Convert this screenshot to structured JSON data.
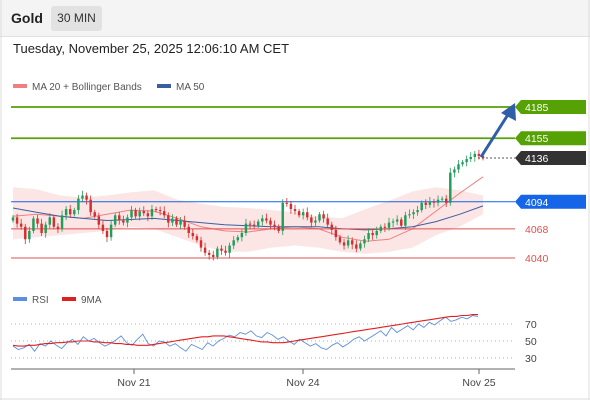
{
  "header": {
    "title": "Gold",
    "timeframe": "30 MIN",
    "datetime": "Tuesday, November 25, 2025 12:06:10 AM CET"
  },
  "colors": {
    "resistance": "#56a104",
    "price_tag": "#333333",
    "pivot": "#1565e8",
    "support": "#e05050",
    "candle_up": "#1f9e5a",
    "candle_down": "#d32f2f",
    "bollinger_fill": "#fbdcdc",
    "ma20": "#f08080",
    "ma50": "#3a5fa0",
    "rsi": "#5b8fe0",
    "rsi_ma": "#e02020",
    "arrow": "#2f5fa8"
  },
  "chart_data": [
    {
      "type": "candlestick",
      "legend": [
        {
          "name": "MA 20 + Bollinger Bands",
          "color": "#f08080"
        },
        {
          "name": "MA 50",
          "color": "#3a5fa0"
        }
      ],
      "x_ticks": [
        "Nov 21",
        "Nov 24",
        "Nov 25"
      ],
      "ylim": [
        4020,
        4200
      ],
      "levels": [
        {
          "value": 4185,
          "label": "4185",
          "kind": "resistance",
          "style": "tag"
        },
        {
          "value": 4155,
          "label": "4155",
          "kind": "resistance",
          "style": "tag"
        },
        {
          "value": 4136,
          "label": "4136",
          "kind": "price",
          "style": "tag"
        },
        {
          "value": 4094,
          "label": "4094",
          "kind": "pivot",
          "style": "tag"
        },
        {
          "value": 4068,
          "label": "4068",
          "kind": "support",
          "style": "text"
        },
        {
          "value": 4040,
          "label": "4040",
          "kind": "support",
          "style": "text"
        }
      ],
      "close": [
        4079,
        4073,
        4070,
        4058,
        4066,
        4078,
        4073,
        4064,
        4072,
        4079,
        4070,
        4068,
        4081,
        4087,
        4082,
        4086,
        4097,
        4100,
        4096,
        4084,
        4080,
        4072,
        4066,
        4060,
        4072,
        4081,
        4076,
        4074,
        4079,
        4086,
        4080,
        4085,
        4083,
        4080,
        4087,
        4086,
        4085,
        4081,
        4074,
        4078,
        4072,
        4076,
        4070,
        4064,
        4061,
        4057,
        4050,
        4045,
        4043,
        4041,
        4049,
        4047,
        4045,
        4052,
        4057,
        4060,
        4064,
        4073,
        4072,
        4071,
        4075,
        4078,
        4076,
        4072,
        4070,
        4066,
        4093,
        4092,
        4087,
        4085,
        4081,
        4084,
        4079,
        4074,
        4076,
        4082,
        4078,
        4072,
        4067,
        4060,
        4055,
        4052,
        4057,
        4053,
        4049,
        4054,
        4058,
        4064,
        4062,
        4066,
        4070,
        4069,
        4074,
        4075,
        4077,
        4071,
        4081,
        4082,
        4084,
        4086,
        4093,
        4091,
        4094,
        4093,
        4096,
        4097,
        4093,
        4122,
        4125,
        4130,
        4132,
        4135,
        4137,
        4140,
        4138,
        4136
      ],
      "bollinger_upper_points": [
        4108,
        4106,
        4100,
        4098,
        4100,
        4103,
        4105,
        4096,
        4092,
        4089,
        4088,
        4086,
        4084,
        4080,
        4078,
        4087,
        4095,
        4104,
        4108,
        4105,
        4100
      ],
      "bollinger_lower_points": [
        4058,
        4060,
        4062,
        4064,
        4066,
        4070,
        4068,
        4060,
        4052,
        4046,
        4046,
        4050,
        4052,
        4050,
        4046,
        4044,
        4046,
        4050,
        4062,
        4070,
        4082
      ],
      "ma20_points": [
        4080,
        4082,
        4080,
        4078,
        4082,
        4086,
        4085,
        4078,
        4070,
        4066,
        4065,
        4068,
        4070,
        4068,
        4060,
        4056,
        4058,
        4068,
        4085,
        4102,
        4118
      ],
      "ma50_points": [
        4088,
        4084,
        4080,
        4078,
        4076,
        4077,
        4078,
        4076,
        4074,
        4072,
        4071,
        4070,
        4070,
        4070,
        4068,
        4067,
        4068,
        4070,
        4075,
        4082,
        4090
      ]
    },
    {
      "type": "line",
      "legend": [
        {
          "name": "RSI",
          "color": "#5b8fe0"
        },
        {
          "name": "9MA",
          "color": "#e02020"
        }
      ],
      "y_ticks": [
        70,
        50,
        30
      ],
      "ylim": [
        20,
        85
      ],
      "series": [
        {
          "name": "RSI",
          "values": [
            44,
            40,
            42,
            46,
            38,
            47,
            44,
            50,
            45,
            41,
            48,
            52,
            46,
            55,
            50,
            53,
            48,
            44,
            47,
            51,
            56,
            48,
            45,
            52,
            58,
            47,
            44,
            50,
            49,
            44,
            47,
            42,
            38,
            46,
            43,
            40,
            48,
            44,
            50,
            53,
            57,
            55,
            60,
            58,
            62,
            56,
            54,
            60,
            57,
            52,
            55,
            50,
            46,
            52,
            48,
            44,
            47,
            42,
            40,
            45,
            48,
            43,
            47,
            52,
            55,
            50,
            54,
            58,
            62,
            56,
            66,
            60,
            64,
            68,
            63,
            70,
            66,
            72,
            69,
            74,
            78,
            73,
            75,
            78,
            76,
            80,
            79
          ]
        },
        {
          "name": "9MA",
          "values": [
            45,
            44,
            44,
            45,
            45,
            46,
            47,
            47,
            48,
            48,
            49,
            49,
            50,
            50,
            50,
            49,
            49,
            48,
            48,
            47,
            47,
            46,
            46,
            45,
            45,
            45,
            46,
            47,
            48,
            49,
            50,
            51,
            52,
            53,
            54,
            55,
            55,
            56,
            56,
            56,
            55,
            54,
            53,
            52,
            51,
            50,
            49,
            49,
            48,
            48,
            48,
            49,
            50,
            51,
            52,
            53,
            54,
            55,
            56,
            57,
            58,
            59,
            60,
            61,
            62,
            63,
            64,
            65,
            66,
            67,
            68,
            69,
            70,
            71,
            72,
            73,
            74,
            75,
            76,
            77,
            78,
            79,
            79,
            80,
            80,
            81,
            81
          ]
        }
      ]
    }
  ]
}
